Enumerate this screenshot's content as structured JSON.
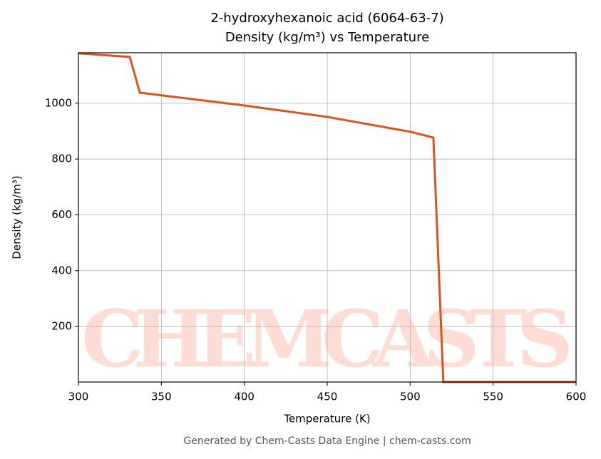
{
  "chart_data": {
    "type": "line",
    "title": "2-hydroxyhexanoic acid (6064-63-7)",
    "subtitle": "Density (kg/m³) vs Temperature",
    "x_label": "Temperature (K)",
    "y_label": "Density (kg/m³)",
    "footer": "Generated by Chem-Casts Data Engine | chem-casts.com",
    "watermark": "CHEMCASTS",
    "x": [
      300,
      331,
      337,
      400,
      450,
      500,
      514,
      520,
      600
    ],
    "series": [
      {
        "name": "Density",
        "color": "#d95321",
        "values": [
          1179,
          1166,
          1038,
          992,
          951,
          898,
          877,
          1,
          1
        ]
      }
    ],
    "xlim": [
      300,
      600
    ],
    "xticks": [
      300,
      350,
      400,
      450,
      500,
      550,
      600
    ],
    "ylim": [
      1,
      1181
    ],
    "yticks": [
      200,
      400,
      600,
      800,
      1000
    ],
    "grid": true
  }
}
